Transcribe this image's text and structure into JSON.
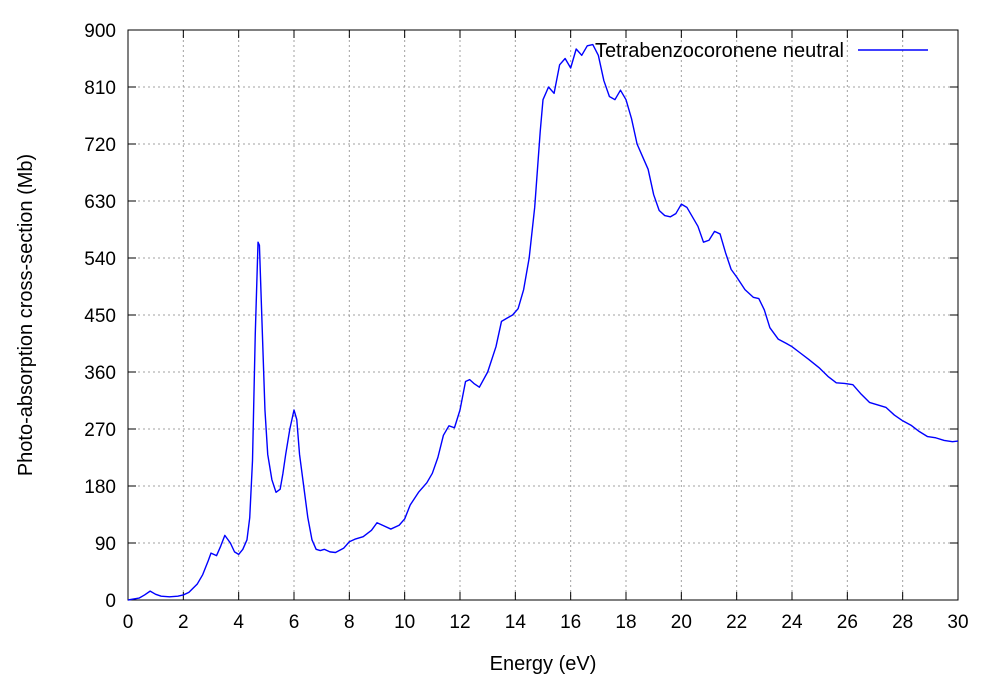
{
  "chart_data": {
    "type": "line",
    "title": "",
    "xlabel": "Energy (eV)",
    "ylabel": "Photo-absorption cross-section (Mb)",
    "xlim": [
      0,
      30
    ],
    "ylim": [
      0,
      900
    ],
    "xticks": [
      0,
      2,
      4,
      6,
      8,
      10,
      12,
      14,
      16,
      18,
      20,
      22,
      24,
      26,
      28,
      30
    ],
    "yticks": [
      0,
      90,
      180,
      270,
      360,
      450,
      540,
      630,
      720,
      810,
      900
    ],
    "grid": true,
    "legend_position": "top-right",
    "series_color": "#0000ff",
    "series": [
      {
        "name": "Tetrabenzocoronene neutral",
        "x": [
          0,
          0.4,
          0.6,
          0.8,
          1.0,
          1.2,
          1.5,
          1.8,
          2.0,
          2.2,
          2.5,
          2.7,
          2.9,
          3.0,
          3.2,
          3.35,
          3.5,
          3.7,
          3.85,
          4.0,
          4.15,
          4.3,
          4.4,
          4.5,
          4.6,
          4.7,
          4.75,
          4.85,
          4.95,
          5.05,
          5.2,
          5.35,
          5.5,
          5.6,
          5.7,
          5.85,
          6.0,
          6.1,
          6.2,
          6.35,
          6.5,
          6.65,
          6.8,
          6.95,
          7.1,
          7.3,
          7.5,
          7.8,
          8.0,
          8.2,
          8.5,
          8.8,
          9.0,
          9.2,
          9.5,
          9.8,
          10.0,
          10.2,
          10.5,
          10.8,
          11.0,
          11.2,
          11.4,
          11.6,
          11.8,
          12.0,
          12.2,
          12.35,
          12.5,
          12.7,
          13.0,
          13.3,
          13.5,
          13.7,
          13.9,
          14.1,
          14.3,
          14.5,
          14.7,
          14.9,
          15.0,
          15.2,
          15.4,
          15.6,
          15.8,
          16.0,
          16.2,
          16.4,
          16.6,
          16.8,
          17.0,
          17.2,
          17.4,
          17.6,
          17.8,
          18.0,
          18.2,
          18.4,
          18.6,
          18.8,
          19.0,
          19.2,
          19.4,
          19.6,
          19.8,
          20.0,
          20.2,
          20.4,
          20.6,
          20.8,
          21.0,
          21.2,
          21.4,
          21.6,
          21.8,
          22.0,
          22.3,
          22.6,
          22.8,
          23.0,
          23.2,
          23.5,
          23.8,
          24.0,
          24.3,
          24.6,
          25.0,
          25.3,
          25.6,
          25.9,
          26.2,
          26.5,
          26.8,
          27.1,
          27.4,
          27.7,
          28.0,
          28.3,
          28.6,
          28.9,
          29.2,
          29.5,
          29.8,
          30.0
        ],
        "values": [
          0,
          3,
          8,
          14,
          9,
          6,
          5,
          6,
          8,
          12,
          25,
          40,
          62,
          74,
          70,
          85,
          102,
          90,
          76,
          72,
          80,
          95,
          130,
          220,
          420,
          565,
          560,
          430,
          300,
          230,
          190,
          170,
          175,
          200,
          230,
          270,
          300,
          285,
          230,
          180,
          130,
          95,
          80,
          78,
          80,
          76,
          75,
          82,
          92,
          96,
          100,
          110,
          122,
          118,
          112,
          118,
          128,
          150,
          170,
          185,
          200,
          225,
          260,
          275,
          272,
          300,
          345,
          348,
          342,
          336,
          360,
          400,
          440,
          445,
          450,
          460,
          490,
          540,
          620,
          740,
          790,
          810,
          800,
          845,
          855,
          840,
          870,
          860,
          875,
          877,
          860,
          820,
          795,
          790,
          805,
          790,
          760,
          720,
          700,
          680,
          640,
          615,
          607,
          605,
          610,
          625,
          620,
          605,
          590,
          565,
          568,
          582,
          578,
          548,
          522,
          510,
          490,
          478,
          476,
          458,
          430,
          412,
          405,
          400,
          390,
          380,
          366,
          353,
          343,
          342,
          340,
          325,
          312,
          308,
          304,
          292,
          283,
          276,
          266,
          258,
          256,
          252,
          250,
          251
        ]
      }
    ]
  }
}
